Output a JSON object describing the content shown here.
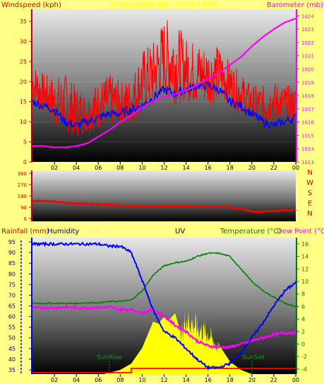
{
  "colors": {
    "page_bg": "#ffff88",
    "wind": "#ff0000",
    "gust_avg": "#0000ff",
    "barometer": "#ff00ff",
    "direction": "#ff0000",
    "humidity": "#0000ff",
    "temperature": "#008000",
    "dew_point": "#ff00ff",
    "solar": "#ffff00",
    "uv": "#ff0000",
    "left_axis_text": "#cc0000",
    "right_axis_text": "#ff00ff"
  },
  "chart_data": [
    {
      "type": "line",
      "name": "wind-barometer",
      "title": "24 hour graph day : 07 April 2008",
      "ylabel_left": "Windspeed (kph)",
      "ylabel_right": "Barometer (mb)",
      "x_ticks": [
        "02",
        "04",
        "06",
        "08",
        "10",
        "12",
        "14",
        "16",
        "18",
        "20",
        "22",
        "00"
      ],
      "y_left_ticks": [
        "0",
        "5",
        "10",
        "15",
        "20",
        "25",
        "30",
        "35"
      ],
      "y_left_range": [
        0,
        38
      ],
      "y_right_ticks": [
        "1013",
        "1014",
        "1015",
        "1016",
        "1017",
        "1018",
        "1019",
        "1020",
        "1021",
        "1022",
        "1023",
        "1024"
      ],
      "y_right_range": [
        1013,
        1024.5
      ],
      "x_range_hours": [
        0,
        24
      ],
      "series": [
        {
          "key": "wind_max",
          "hours": [
            0,
            1,
            2,
            3,
            4,
            5,
            6,
            7,
            8,
            9,
            10,
            11,
            12,
            13,
            14,
            15,
            16,
            17,
            18,
            19,
            20,
            21,
            22,
            23,
            24
          ],
          "values": [
            25,
            22,
            21,
            22,
            19,
            17,
            20,
            22,
            20,
            21,
            28,
            30,
            36,
            35,
            31,
            30,
            29,
            29,
            25,
            22,
            19,
            19,
            20,
            19,
            19
          ]
        },
        {
          "key": "wind_min",
          "hours": [
            0,
            1,
            2,
            3,
            4,
            5,
            6,
            7,
            8,
            9,
            10,
            11,
            12,
            13,
            14,
            15,
            16,
            17,
            18,
            19,
            20,
            21,
            22,
            23,
            24
          ],
          "values": [
            14,
            12,
            9,
            7,
            6,
            7,
            8,
            9,
            9,
            9,
            12,
            14,
            16,
            14,
            15,
            14,
            14,
            15,
            14,
            12,
            11,
            9,
            10,
            10,
            10
          ]
        },
        {
          "key": "wind_avg",
          "hours": [
            0,
            1,
            2,
            3,
            4,
            5,
            6,
            7,
            8,
            9,
            10,
            11,
            12,
            13,
            14,
            15,
            16,
            17,
            18,
            19,
            20,
            21,
            22,
            23,
            24
          ],
          "values": [
            15,
            14,
            13,
            10,
            9,
            10,
            11,
            12,
            12,
            13,
            14,
            16,
            18,
            17,
            18,
            19,
            19,
            18,
            15,
            14,
            12,
            10,
            9,
            10,
            11
          ]
        },
        {
          "key": "barometer",
          "hours": [
            0,
            1,
            2,
            3,
            4,
            5,
            6,
            7,
            8,
            9,
            10,
            11,
            12,
            13,
            14,
            15,
            16,
            17,
            18,
            19,
            20,
            21,
            22,
            23,
            24
          ],
          "values": [
            1014.2,
            1014.2,
            1014.1,
            1014.1,
            1014.2,
            1014.4,
            1014.9,
            1015.4,
            1016.0,
            1016.5,
            1017.1,
            1017.6,
            1017.9,
            1018.1,
            1018.4,
            1018.8,
            1019.3,
            1019.7,
            1020.3,
            1020.9,
            1021.7,
            1022.4,
            1023.0,
            1023.5,
            1023.8
          ]
        }
      ]
    },
    {
      "type": "line",
      "name": "wind-direction",
      "y_left_ticks": [
        "0",
        "90",
        "180",
        "270",
        "360"
      ],
      "y_left_range": [
        0,
        360
      ],
      "y_right_ticks": [
        "N",
        "W",
        "S",
        "E",
        "N"
      ],
      "x_range_hours": [
        0,
        24
      ],
      "series": [
        {
          "key": "direction",
          "hours": [
            0,
            1,
            2,
            3,
            4,
            5,
            6,
            7,
            8,
            9,
            10,
            11,
            12,
            13,
            14,
            15,
            16,
            17,
            18,
            19,
            20,
            21,
            22,
            23,
            24
          ],
          "values": [
            140,
            140,
            135,
            125,
            120,
            118,
            115,
            110,
            105,
            100,
            95,
            95,
            100,
            100,
            98,
            96,
            95,
            94,
            92,
            80,
            55,
            55,
            60,
            65,
            70
          ]
        }
      ]
    },
    {
      "type": "area",
      "name": "humidity-temperature-solar",
      "header": {
        "rainfall": "Rainfall (mm)",
        "humidity": "Humidity",
        "solar": "Solar",
        "uv": "UV",
        "temperature": "Temperature (°C)",
        "dew_point": "Dew Point (°C)"
      },
      "y_left_ticks": [
        "35",
        "40",
        "45",
        "50",
        "55",
        "60",
        "65",
        "70",
        "75",
        "80",
        "85",
        "90",
        "95"
      ],
      "y_left_range": [
        33,
        97
      ],
      "y_right_ticks": [
        "-4",
        "-2",
        "0",
        "2",
        "4",
        "6",
        "8",
        "10",
        "12",
        "14",
        "16"
      ],
      "y_right_range": [
        -4.8,
        17
      ],
      "x_ticks": [
        "02",
        "04",
        "06",
        "08",
        "10",
        "12",
        "14",
        "16",
        "18",
        "20",
        "22",
        "00"
      ],
      "x_range_hours": [
        0,
        24
      ],
      "annotations": {
        "sunrise": "SunRise",
        "sunset": "SunSet"
      },
      "sunrise_hour": 7.0,
      "sunset_hour": 20.0,
      "series": [
        {
          "key": "humidity",
          "hours": [
            0,
            1,
            2,
            3,
            4,
            5,
            6,
            7,
            8,
            9,
            10,
            11,
            12,
            13,
            14,
            15,
            16,
            17,
            18,
            19,
            20,
            21,
            22,
            23,
            24
          ],
          "values": [
            94,
            94,
            94,
            94,
            94,
            94,
            94,
            93,
            93,
            90,
            77,
            63,
            53,
            50,
            45,
            40,
            36,
            36,
            38,
            43,
            50,
            57,
            65,
            72,
            76
          ]
        },
        {
          "key": "temperature",
          "hours": [
            0,
            1,
            2,
            3,
            4,
            5,
            6,
            7,
            8,
            9,
            10,
            11,
            12,
            13,
            14,
            15,
            16,
            17,
            18,
            19,
            20,
            21,
            22,
            23,
            24
          ],
          "values": [
            6.5,
            6.5,
            6.5,
            6.5,
            6.5,
            6.6,
            6.6,
            6.8,
            6.8,
            7.0,
            8.5,
            11.0,
            12.5,
            13.0,
            13.2,
            14.0,
            14.5,
            14.5,
            14.0,
            12.0,
            10.0,
            8.5,
            7.5,
            6.5,
            6.0
          ]
        },
        {
          "key": "dew_point",
          "hours": [
            0,
            1,
            2,
            3,
            4,
            5,
            6,
            7,
            8,
            9,
            10,
            11,
            12,
            13,
            14,
            15,
            16,
            17,
            18,
            19,
            20,
            21,
            22,
            23,
            24
          ],
          "values": [
            5.8,
            5.8,
            5.8,
            5.9,
            5.8,
            5.8,
            5.8,
            5.9,
            5.5,
            5.5,
            5.0,
            5.5,
            4.5,
            3.0,
            2.0,
            0.5,
            -0.3,
            -0.5,
            -0.5,
            0,
            0.5,
            1.0,
            1.5,
            1.8,
            1.8
          ]
        },
        {
          "key": "solar",
          "hours": [
            6.5,
            8,
            9,
            10,
            11,
            11.5,
            12,
            12.5,
            13,
            13.5,
            14,
            15,
            16,
            17,
            18,
            19,
            20
          ],
          "values": [
            0,
            4,
            10,
            25,
            50,
            48,
            55,
            52,
            58,
            40,
            62,
            52,
            45,
            28,
            12,
            4,
            0
          ]
        },
        {
          "key": "uv_rain",
          "hours": [
            0,
            9,
            9,
            24
          ],
          "values": [
            0,
            0,
            1,
            1
          ]
        }
      ]
    }
  ]
}
